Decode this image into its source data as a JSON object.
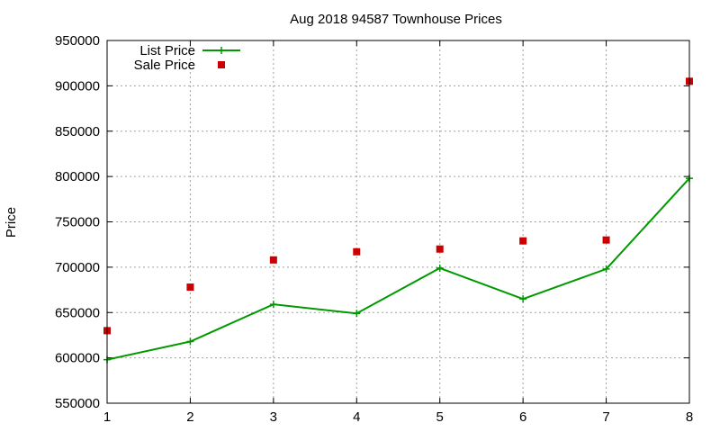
{
  "chart_data": {
    "type": "line",
    "title": "Aug 2018 94587 Townhouse Prices",
    "xlabel": "",
    "ylabel": "Price",
    "x": [
      1,
      2,
      3,
      4,
      5,
      6,
      7,
      8
    ],
    "xlim": [
      1,
      8
    ],
    "ylim": [
      550000,
      950000
    ],
    "yticks": [
      550000,
      600000,
      650000,
      700000,
      750000,
      800000,
      850000,
      900000,
      950000
    ],
    "grid": true,
    "legend_position": "top-left",
    "series": [
      {
        "name": "List Price",
        "style": "line-with-plus-markers",
        "color": "#009900",
        "values": [
          598000,
          618000,
          659000,
          649000,
          699000,
          665000,
          698000,
          798000
        ]
      },
      {
        "name": "Sale Price",
        "style": "square-markers",
        "color": "#cc0000",
        "values": [
          630000,
          678000,
          708000,
          717000,
          720000,
          729000,
          730000,
          905000
        ]
      }
    ]
  }
}
